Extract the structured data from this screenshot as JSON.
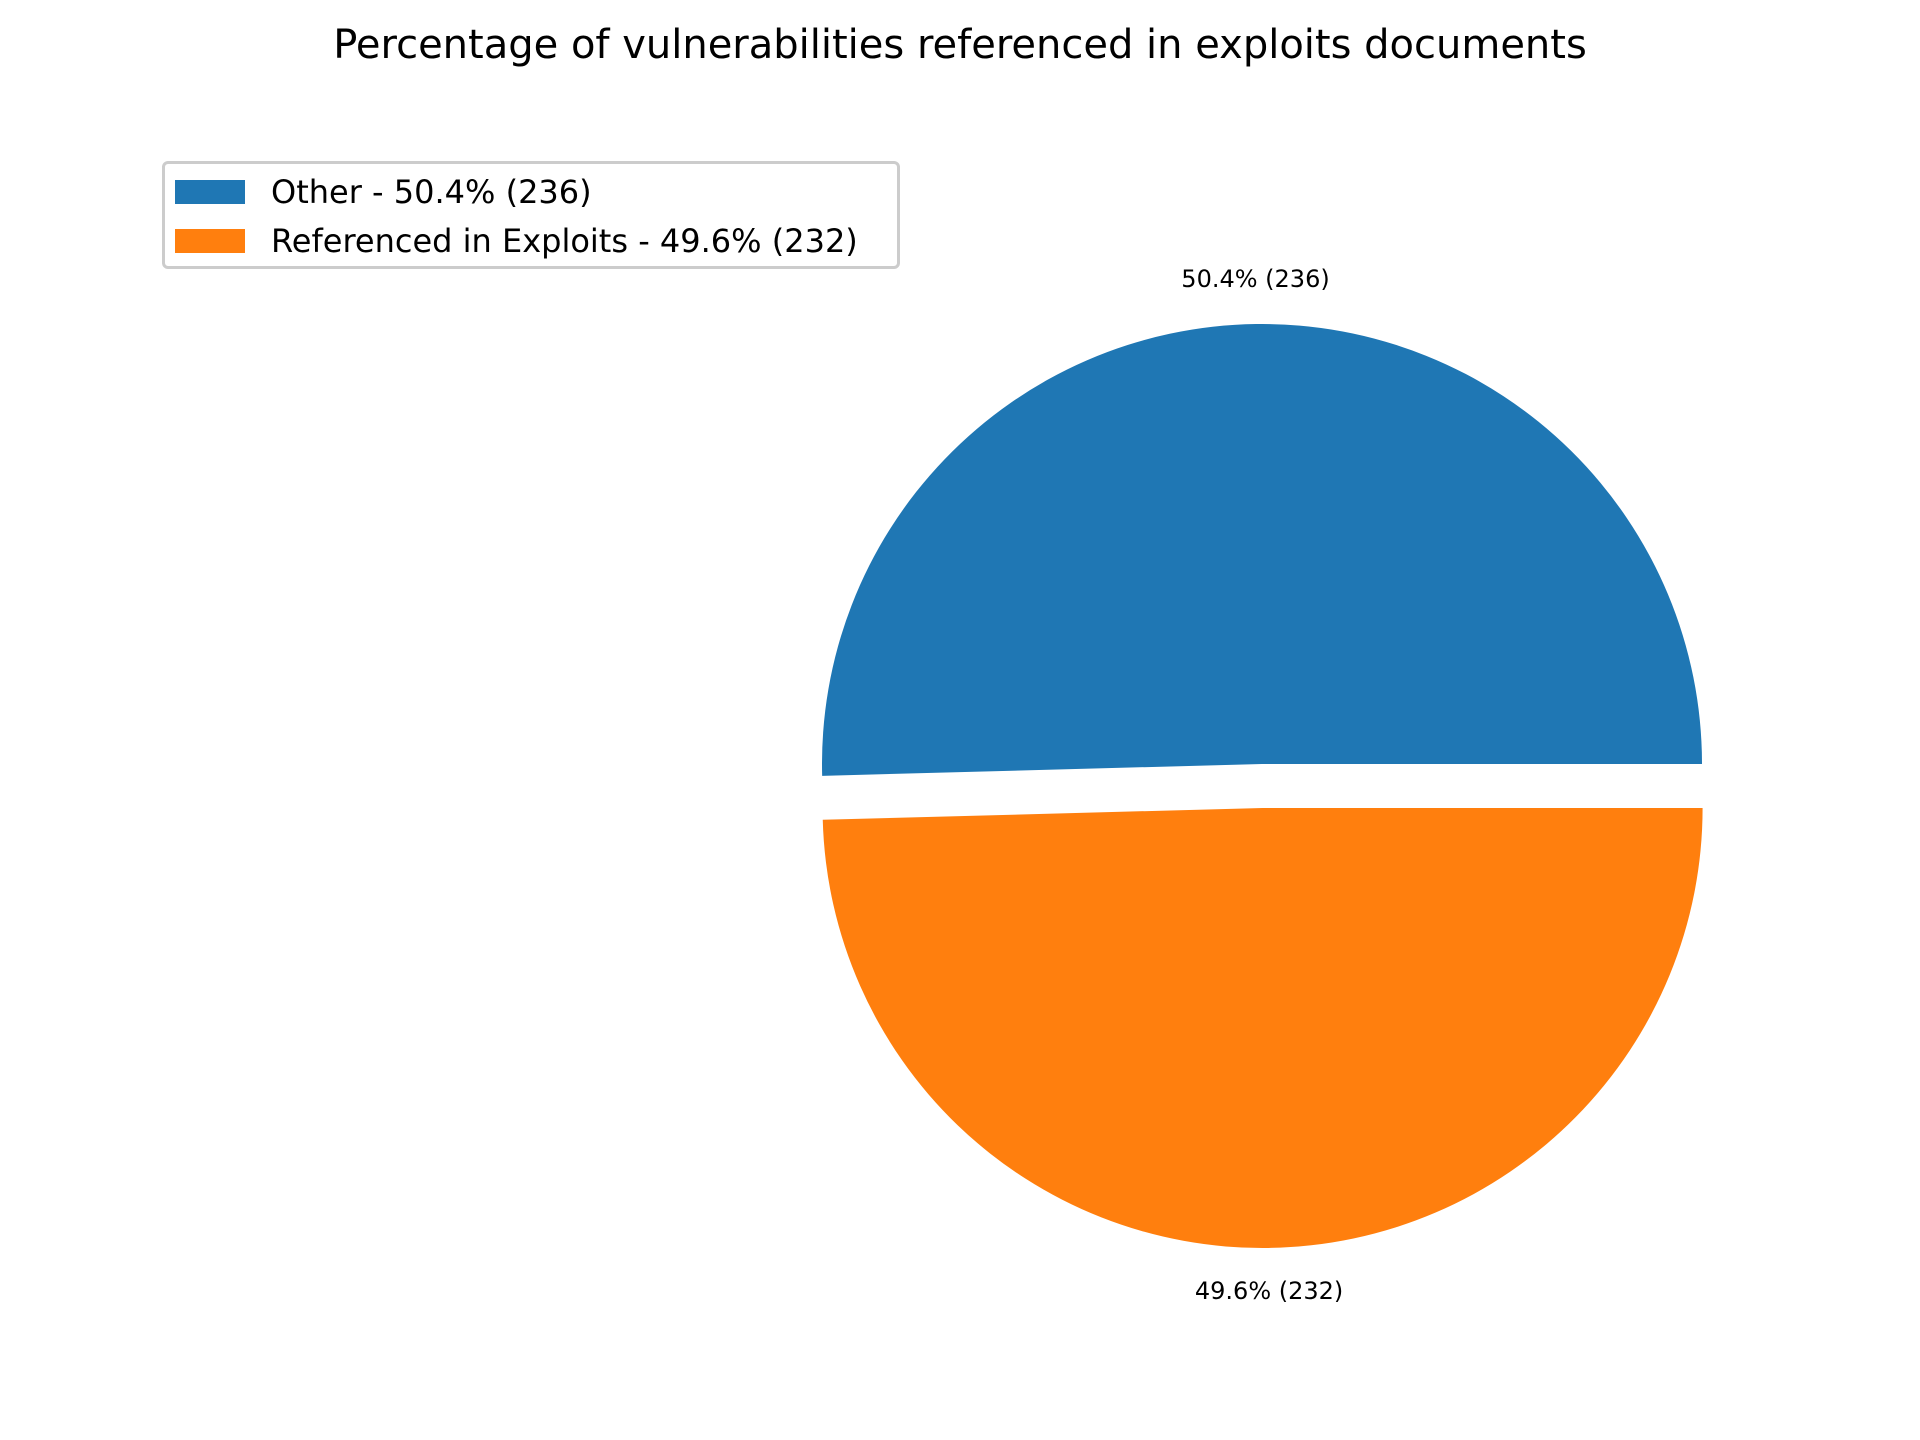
{
  "chart_data": {
    "type": "pie",
    "title": "Percentage of vulnerabilities referenced in exploits documents",
    "slices": [
      {
        "name": "Other",
        "value": 236,
        "percent": 50.4,
        "label": "50.4% (236)",
        "legend_label": "Other - 50.4% (236)",
        "color": "#1f77b4",
        "exploded": false
      },
      {
        "name": "Referenced in Exploits",
        "value": 232,
        "percent": 49.6,
        "label": "49.6% (232)",
        "legend_label": "Referenced in Exploits - 49.6% (232)",
        "color": "#ff7f0e",
        "exploded": true
      }
    ],
    "start_angle_deg": 0,
    "direction": "counterclockwise",
    "legend_position": "upper-left",
    "grid": false
  }
}
